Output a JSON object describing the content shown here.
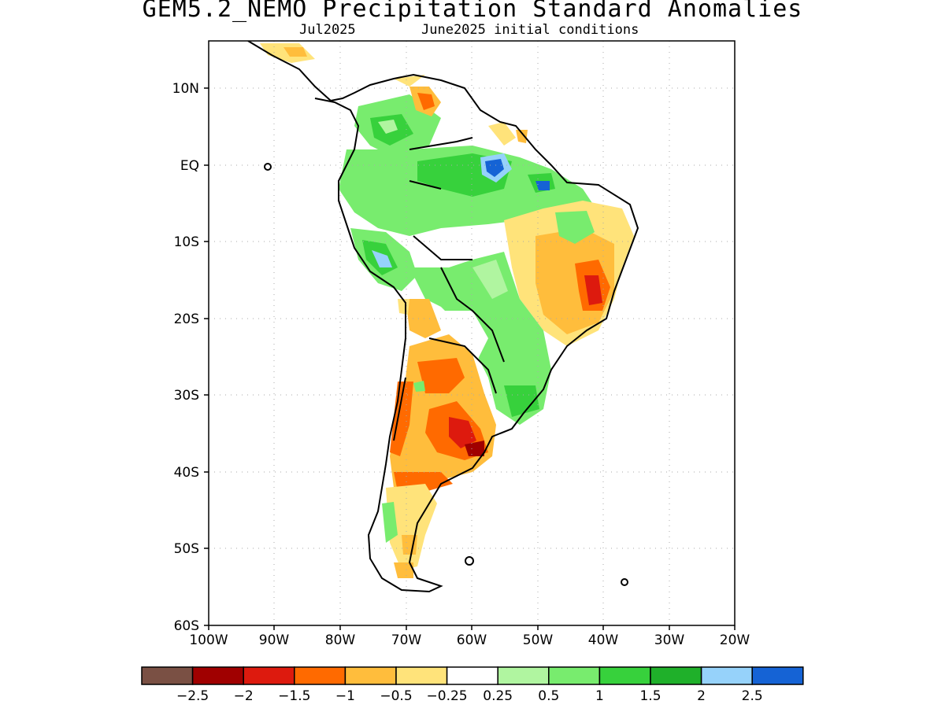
{
  "title": "GEM5.2_NEMO Precipitation Standard Anomalies",
  "subtitle_left": "Jul2025",
  "subtitle_right": "June2025 initial conditions",
  "lat_labels": [
    "10N",
    "EQ",
    "10S",
    "20S",
    "30S",
    "40S",
    "50S",
    "60S"
  ],
  "lon_labels": [
    "100W",
    "90W",
    "80W",
    "70W",
    "60W",
    "50W",
    "40W",
    "30W",
    "20W"
  ],
  "colorbar": {
    "colors": [
      "#7a5044",
      "#a00000",
      "#dd1a0e",
      "#ff6a00",
      "#ffbd3c",
      "#ffe37a",
      "#ffffff",
      "#b0f5a0",
      "#78ec6e",
      "#37d13c",
      "#1fb02a",
      "#96d2fa",
      "#1563d5"
    ],
    "labels": [
      "−2.5",
      "−2",
      "−1.5",
      "−1",
      "−0.5",
      "−0.25",
      "0.25",
      "0.5",
      "1",
      "1.5",
      "2",
      "2.5"
    ]
  },
  "colors": {
    "land_outline": "#000000",
    "grid": "#aaaaaa"
  }
}
